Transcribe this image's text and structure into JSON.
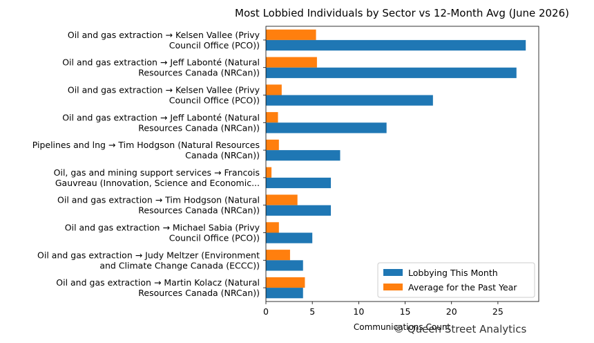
{
  "chart_data": {
    "type": "bar",
    "orientation": "horizontal",
    "title": "Most Lobbied Individuals by Sector vs 12-Month Avg (June 2026)",
    "xlabel": "Communications Count",
    "ylabel": "",
    "xlim": [
      0,
      29.4
    ],
    "xticks": [
      0,
      5,
      10,
      15,
      20,
      25
    ],
    "grid": false,
    "legend_position": "bottom-right",
    "categories": [
      [
        "Oil and gas extraction → Kelsen Vallee (Privy",
        "Council Office (PCO))"
      ],
      [
        "Oil and gas extraction → Jeff Labonté (Natural",
        "Resources Canada (NRCan))"
      ],
      [
        "Oil and gas extraction → Kelsen Vallee (Privy",
        "Council Office (PCO))"
      ],
      [
        "Oil and gas extraction → Jeff Labonté (Natural",
        "Resources Canada (NRCan))"
      ],
      [
        "Pipelines and lng → Tim Hodgson (Natural Resources",
        "Canada (NRCan))"
      ],
      [
        "Oil, gas and mining support services → Francois",
        "Gauvreau (Innovation, Science and Economic..."
      ],
      [
        "Oil and gas extraction → Tim Hodgson (Natural",
        "Resources Canada (NRCan))"
      ],
      [
        "Oil and gas extraction → Michael Sabia (Privy",
        "Council Office (PCO))"
      ],
      [
        "Oil and gas extraction → Judy Meltzer (Environment",
        "and Climate Change Canada (ECCC))"
      ],
      [
        "Oil and gas extraction → Martin Kolacz (Natural",
        "Resources Canada (NRCan))"
      ]
    ],
    "series": [
      {
        "name": "Lobbying This Month",
        "color": "#1f77b4",
        "values": [
          28,
          27,
          18,
          13,
          8,
          7,
          7,
          5,
          4,
          4
        ]
      },
      {
        "name": "Average for the Past Year",
        "color": "#ff7f0e",
        "values": [
          5.4,
          5.5,
          1.7,
          1.3,
          1.4,
          0.6,
          3.4,
          1.4,
          2.6,
          4.2
        ]
      }
    ]
  },
  "watermark": "© Queen Street Analytics"
}
